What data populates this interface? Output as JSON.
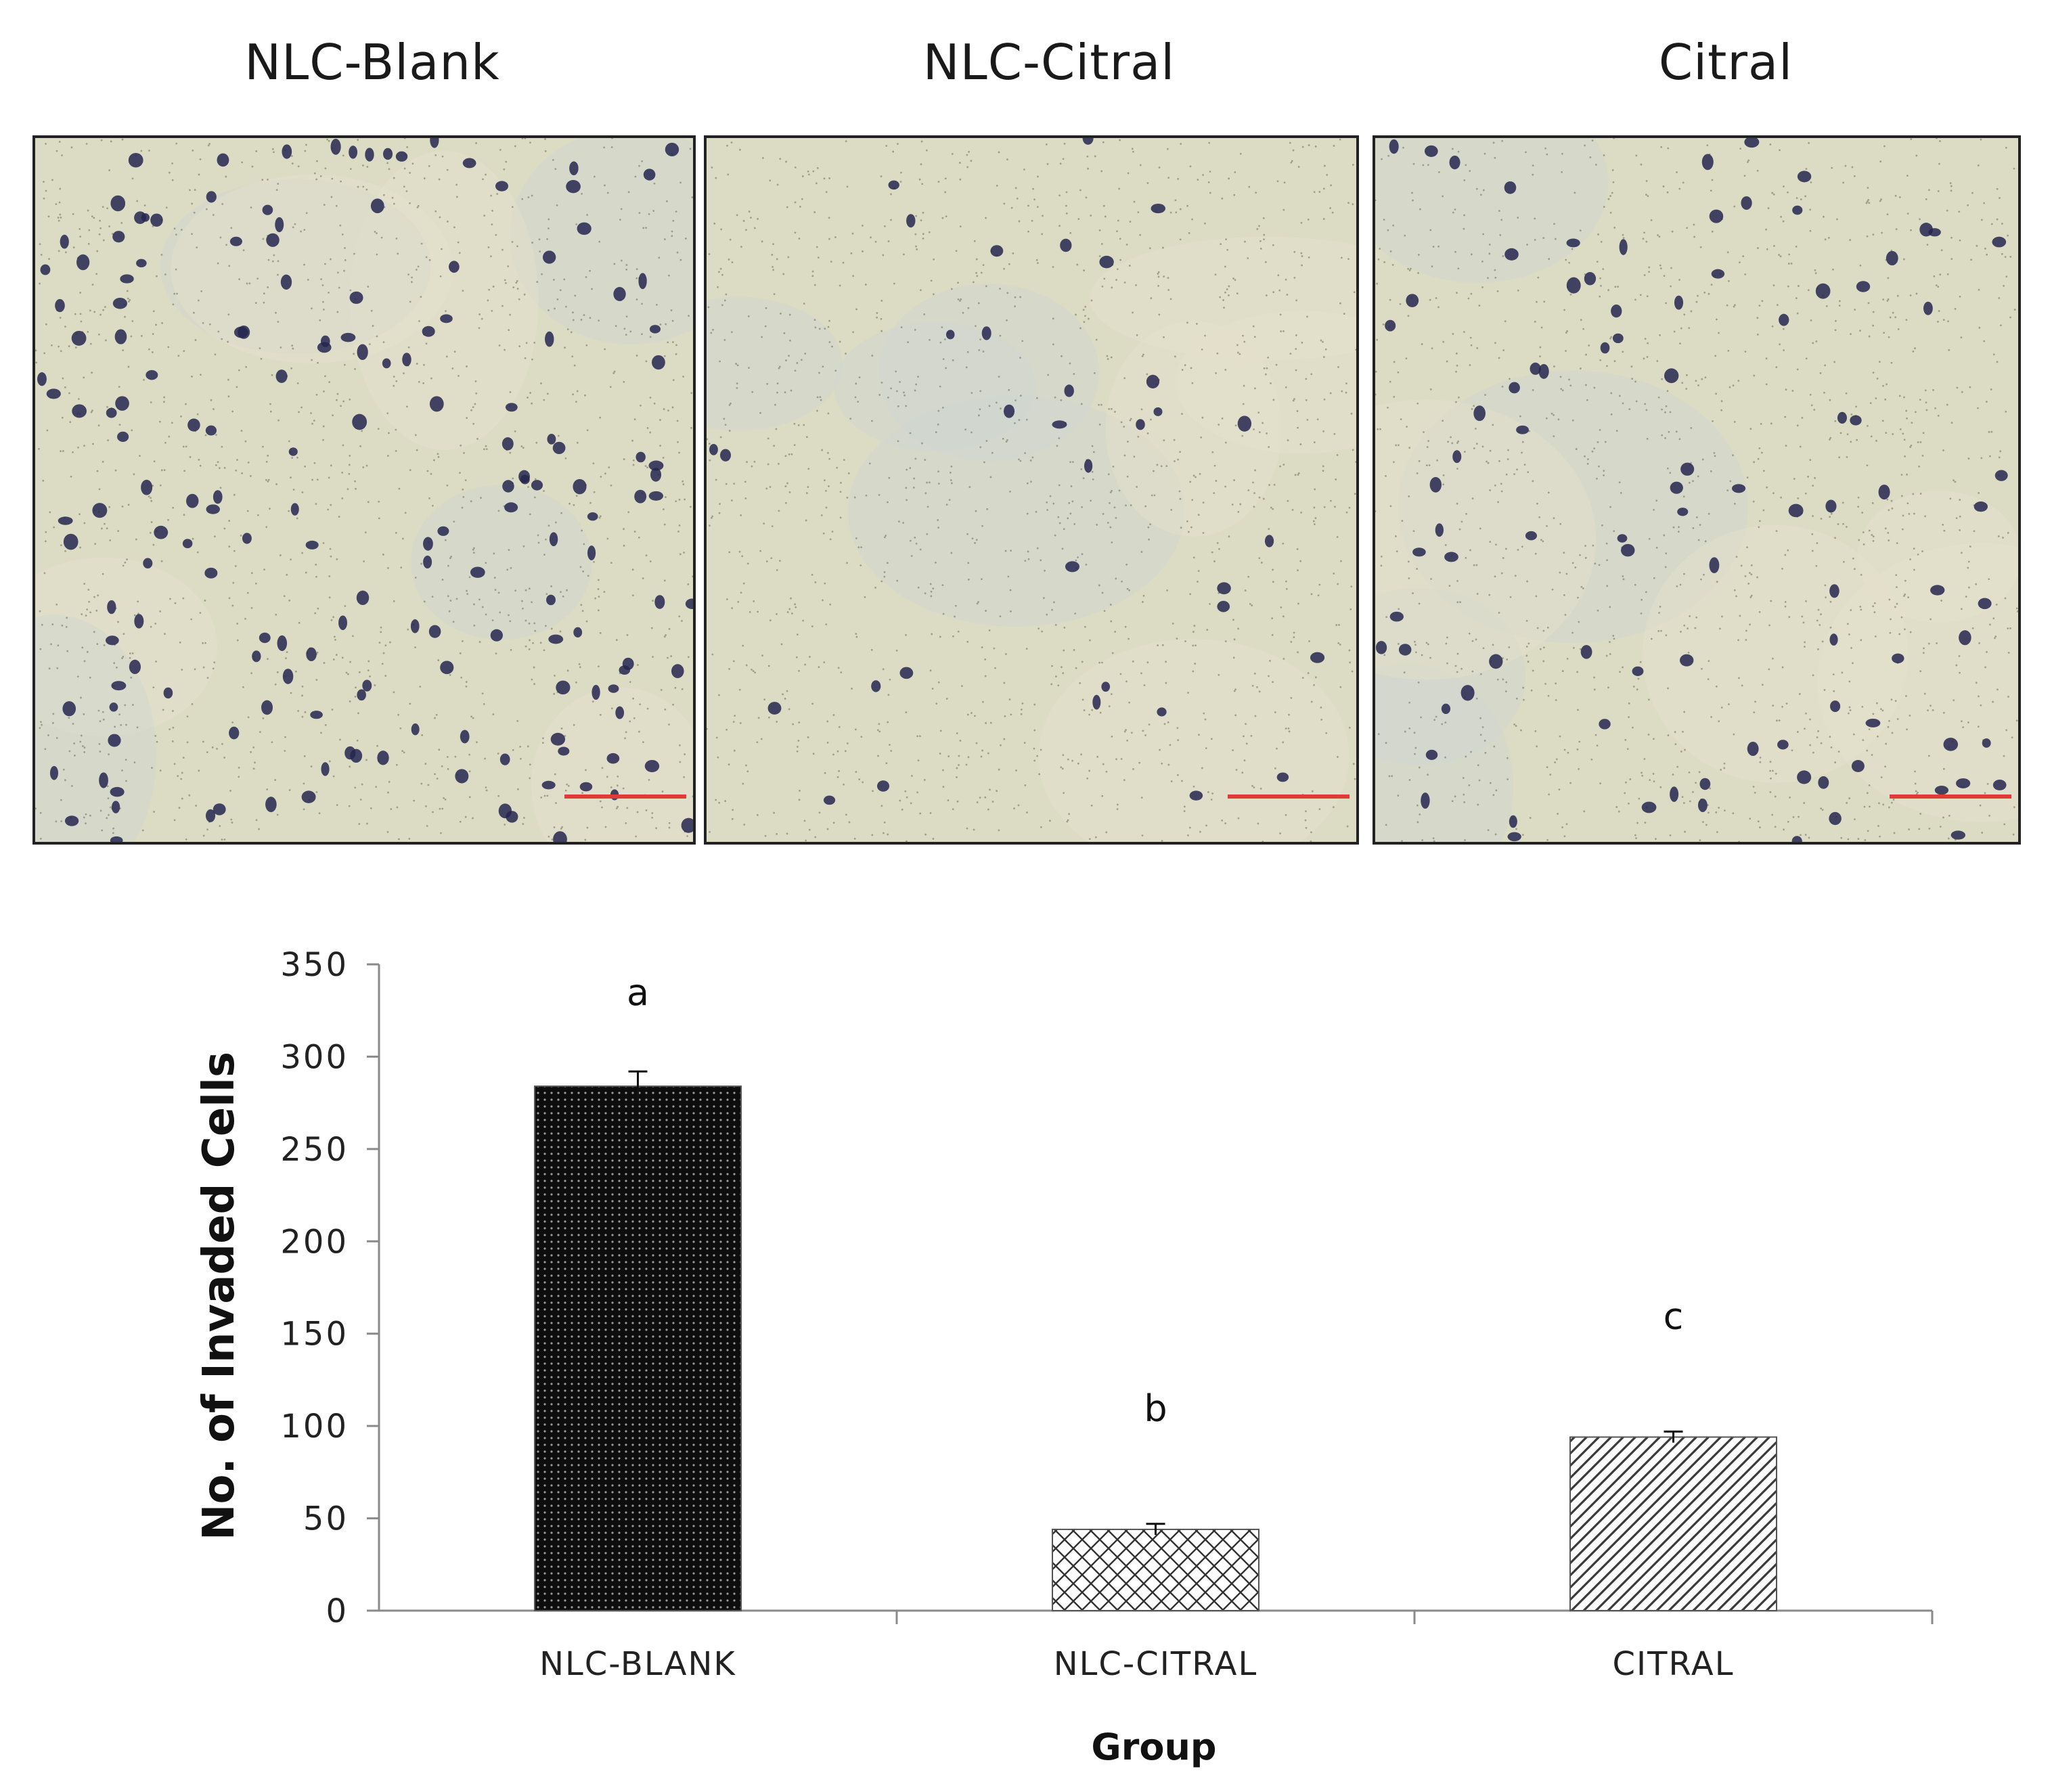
{
  "panels": [
    {
      "title": "NLC-Blank",
      "density": "high"
    },
    {
      "title": "NLC-Citral",
      "density": "low"
    },
    {
      "title": "Citral",
      "density": "medium"
    }
  ],
  "colors": {
    "background": "#dcdcc4",
    "cell": "#262650",
    "scale_bar": "#e23a36",
    "bar_dense": "#111111",
    "hatch": "#3a3a3a"
  },
  "chart_data": {
    "type": "bar",
    "categories": [
      "NLC-BLANK",
      "NLC-CITRAL",
      "CITRAL"
    ],
    "values": [
      284,
      44,
      94
    ],
    "errors": [
      8,
      3,
      3
    ],
    "significance_labels": [
      "a",
      "b",
      "c"
    ],
    "patterns": [
      "dots-dark",
      "crosshatch",
      "diagonal"
    ],
    "xlabel": "Group",
    "ylabel": "No. of Invaded Cells",
    "ylim": [
      0,
      350
    ],
    "yticks": [
      "0",
      "50",
      "100",
      "150",
      "200",
      "250",
      "300",
      "350"
    ],
    "ytick_values": [
      0,
      50,
      100,
      150,
      200,
      250,
      300,
      350
    ],
    "grid": false,
    "legend": "none"
  }
}
